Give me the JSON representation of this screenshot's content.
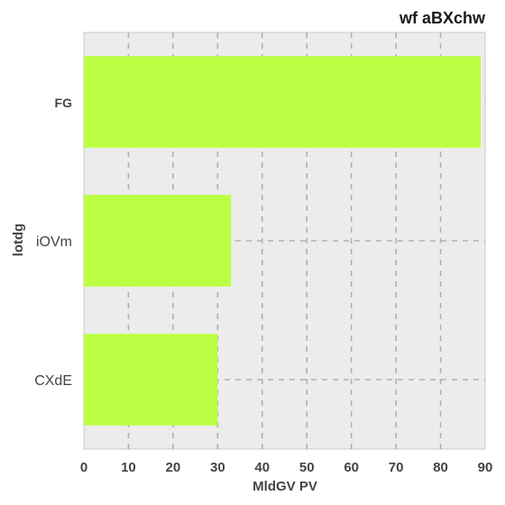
{
  "chart_data": {
    "type": "bar",
    "orientation": "horizontal",
    "title": "wf aBXchw",
    "xlabel": "MldGV  PV",
    "ylabel": "lotdg",
    "categories": [
      "FG",
      "iOVm",
      "CXdE"
    ],
    "values": [
      89,
      33,
      30
    ],
    "xlim": [
      0,
      90
    ],
    "xticks": [
      0,
      10,
      20,
      30,
      40,
      50,
      60,
      70,
      80,
      90
    ],
    "grid": true,
    "colors": {
      "bar": "#bbff44",
      "background": "#ececec",
      "grid": "#b0b0b0"
    }
  }
}
